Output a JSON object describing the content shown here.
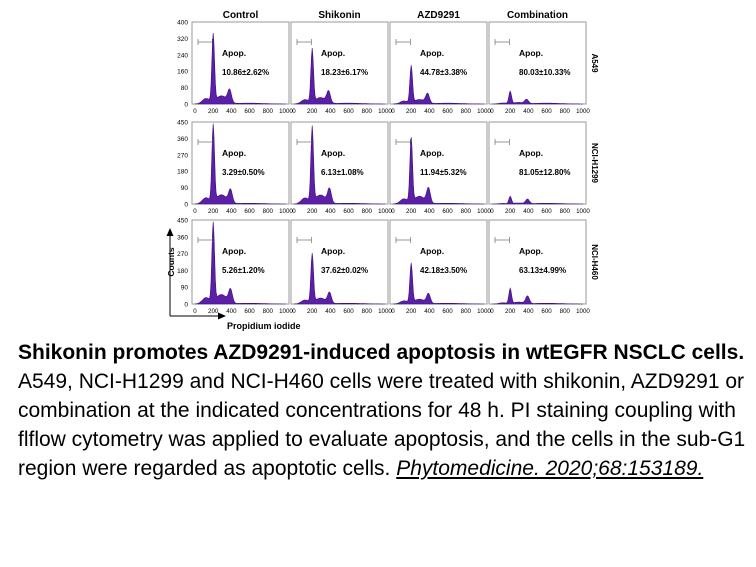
{
  "chart_data": {
    "type": "area",
    "panel_type": "flow cytometry histogram (PI DNA content)",
    "xlabel": "Propidium iodide",
    "ylabel": "Counts",
    "x_ticks": [
      "0",
      "200",
      "400",
      "600",
      "800",
      "1000"
    ],
    "xlim": [
      0,
      1000
    ],
    "columns": [
      "Control",
      "Shikonin",
      "AZD9291",
      "Combination"
    ],
    "rows": [
      {
        "cell_line": "A549",
        "y_ticks": [
          "0",
          "80",
          "160",
          "240",
          "320",
          "400"
        ],
        "ylim": [
          0,
          400
        ],
        "panels": [
          {
            "treatment": "Control",
            "label": "Apop.",
            "value": "10.86±2.62%",
            "g1_peak_x": 200,
            "g1_peak_y": 330,
            "g2_peak_x": 380,
            "g2_peak_y": 60
          },
          {
            "treatment": "Shikonin",
            "label": "Apop.",
            "value": "18.23±6.17%",
            "g1_peak_x": 200,
            "g1_peak_y": 260,
            "g2_peak_x": 380,
            "g2_peak_y": 55
          },
          {
            "treatment": "AZD9291",
            "label": "Apop.",
            "value": "44.78±3.38%",
            "g1_peak_x": 200,
            "g1_peak_y": 180,
            "g2_peak_x": 380,
            "g2_peak_y": 45
          },
          {
            "treatment": "Combination",
            "label": "Apop.",
            "value": "80.03±10.33%",
            "g1_peak_x": 200,
            "g1_peak_y": 60,
            "g2_peak_x": 380,
            "g2_peak_y": 20
          }
        ]
      },
      {
        "cell_line": "NCI-H1299",
        "y_ticks": [
          "0",
          "90",
          "180",
          "270",
          "360",
          "450"
        ],
        "ylim": [
          0,
          450
        ],
        "panels": [
          {
            "treatment": "Control",
            "label": "Apop.",
            "value": "3.29±0.50%",
            "g1_peak_x": 200,
            "g1_peak_y": 420,
            "g2_peak_x": 390,
            "g2_peak_y": 70
          },
          {
            "treatment": "Shikonin",
            "label": "Apop.",
            "value": "6.13±1.08%",
            "g1_peak_x": 200,
            "g1_peak_y": 410,
            "g2_peak_x": 390,
            "g2_peak_y": 75
          },
          {
            "treatment": "AZD9291",
            "label": "Apop.",
            "value": "11.94±5.32%",
            "g1_peak_x": 200,
            "g1_peak_y": 350,
            "g2_peak_x": 390,
            "g2_peak_y": 80
          },
          {
            "treatment": "Combination",
            "label": "Apop.",
            "value": "81.05±12.80%",
            "g1_peak_x": 200,
            "g1_peak_y": 40,
            "g2_peak_x": 390,
            "g2_peak_y": 25
          }
        ]
      },
      {
        "cell_line": "NCI-H460",
        "y_ticks": [
          "0",
          "90",
          "180",
          "270",
          "360",
          "450"
        ],
        "ylim": [
          0,
          450
        ],
        "panels": [
          {
            "treatment": "Control",
            "label": "Apop.",
            "value": "5.26±1.20%",
            "g1_peak_x": 200,
            "g1_peak_y": 420,
            "g2_peak_x": 390,
            "g2_peak_y": 70
          },
          {
            "treatment": "Shikonin",
            "label": "Apop.",
            "value": "37.62±0.02%",
            "g1_peak_x": 200,
            "g1_peak_y": 260,
            "g2_peak_x": 390,
            "g2_peak_y": 55
          },
          {
            "treatment": "AZD9291",
            "label": "Apop.",
            "value": "42.18±3.50%",
            "g1_peak_x": 200,
            "g1_peak_y": 210,
            "g2_peak_x": 390,
            "g2_peak_y": 50
          },
          {
            "treatment": "Combination",
            "label": "Apop.",
            "value": "63.13±4.99%",
            "g1_peak_x": 200,
            "g1_peak_y": 80,
            "g2_peak_x": 390,
            "g2_peak_y": 40
          }
        ]
      }
    ],
    "fill_color": "#5b1fa8",
    "line_color": "#3a0f7a"
  },
  "caption": {
    "title": "Shikonin promotes AZD9291-induced apoptosis in wtEGFR NSCLC cells.",
    "body": "A549, NCI-H1299 and NCI-H460 cells were treated with shikonin, AZD9291 or combination at the indicated concentrations for 48 h. PI staining coupling with flflow cytometry was applied to evaluate apoptosis, and the cells in the sub-G1 region were regarded as apoptotic cells. ",
    "reference": "Phytomedicine. 2020;68:153189."
  }
}
